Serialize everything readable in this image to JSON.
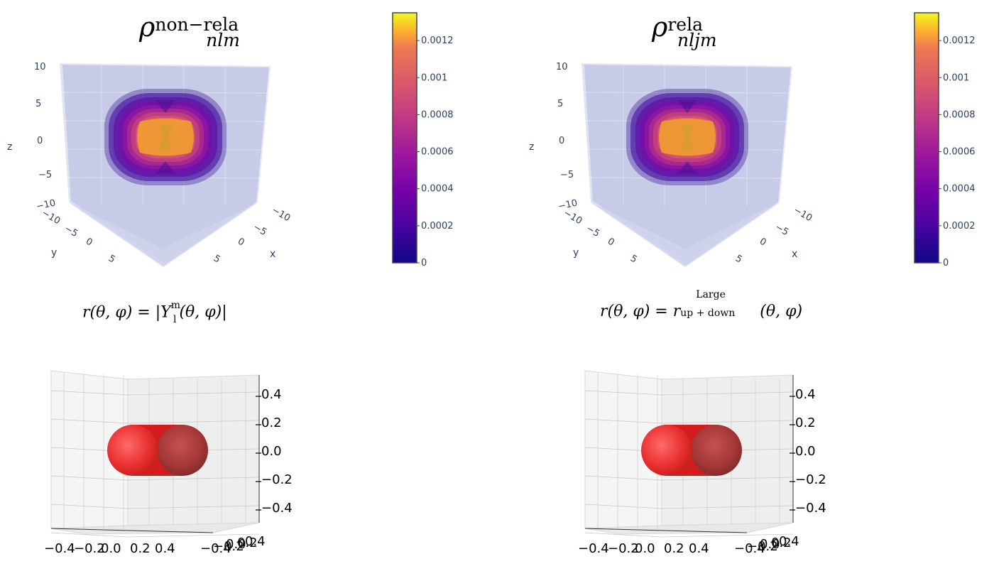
{
  "chart_data": [
    {
      "type": "surface3d",
      "title": "ρ nlm non−rela",
      "title_parts": {
        "base": "ρ",
        "sup": "non−rela",
        "sub": "nlm"
      },
      "axes": {
        "x": {
          "label": "x",
          "range": [
            -10,
            10
          ],
          "ticks": [
            "−10",
            "−5",
            "0",
            "5"
          ]
        },
        "y": {
          "label": "y",
          "range": [
            -10,
            10
          ],
          "ticks": [
            "−10",
            "−5",
            "0",
            "5"
          ]
        },
        "z": {
          "label": "z",
          "range": [
            -10,
            10
          ],
          "ticks": [
            "10",
            "5",
            "0",
            "−5",
            "−10"
          ]
        }
      },
      "colorbar": {
        "min": 0,
        "max": 0.00135,
        "ticks": [
          "0.0012",
          "0.001",
          "0.0008",
          "0.0006",
          "0.0004",
          "0.0002",
          "0"
        ],
        "colorscale": "plasma"
      },
      "isosurface_levels": [
        0.0001,
        0.0002,
        0.0004,
        0.0006,
        0.0008,
        0.001,
        0.0012
      ]
    },
    {
      "type": "surface3d",
      "title": "ρ nljm rela",
      "title_parts": {
        "base": "ρ",
        "sup": "rela",
        "sub": "nljm"
      },
      "axes": {
        "x": {
          "label": "x",
          "range": [
            -10,
            10
          ],
          "ticks": [
            "−10",
            "−5",
            "0",
            "5"
          ]
        },
        "y": {
          "label": "y",
          "range": [
            -10,
            10
          ],
          "ticks": [
            "−10",
            "−5",
            "0",
            "5"
          ]
        },
        "z": {
          "label": "z",
          "range": [
            -10,
            10
          ],
          "ticks": [
            "10",
            "5",
            "0",
            "−5",
            "−10"
          ]
        }
      },
      "colorbar": {
        "min": 0,
        "max": 0.00135,
        "ticks": [
          "0.0012",
          "0.001",
          "0.0008",
          "0.0006",
          "0.0004",
          "0.0002",
          "0"
        ],
        "colorscale": "plasma"
      },
      "isosurface_levels": [
        0.0001,
        0.0002,
        0.0004,
        0.0006,
        0.0008,
        0.001,
        0.0012
      ]
    },
    {
      "type": "surface3d",
      "title": "r(θ,φ) = |Y_l^m(θ,φ)|",
      "axes": {
        "x": {
          "ticks": [
            "−0.4",
            "−0.2",
            "0.0",
            "0.2",
            "0.4"
          ]
        },
        "y": {
          "ticks": [
            "−0.4",
            "−0.2",
            "0.0",
            "0.2",
            "0.4"
          ]
        },
        "z": {
          "ticks": [
            "0.4",
            "0.2",
            "0.0",
            "−0.2",
            "−0.4"
          ],
          "range": [
            -0.5,
            0.5
          ]
        }
      },
      "lobe_extent": [
        -0.35,
        0.35
      ],
      "lobe_radius": 0.18
    },
    {
      "type": "surface3d",
      "title": "r(θ,φ) = r^Large_up+down(θ,φ)",
      "axes": {
        "x": {
          "ticks": [
            "−0.4",
            "−0.2",
            "0.0",
            "0.2",
            "0.4"
          ]
        },
        "y": {
          "ticks": [
            "−0.4",
            "−0.2",
            "0.0",
            "0.2",
            "0.4"
          ]
        },
        "z": {
          "ticks": [
            "0.4",
            "0.2",
            "0.0",
            "−0.2",
            "−0.4"
          ],
          "range": [
            -0.5,
            0.5
          ]
        }
      },
      "lobe_extent": [
        -0.35,
        0.35
      ],
      "lobe_radius": 0.18
    }
  ],
  "formulas": {
    "left": {
      "lhs": "r(θ, φ) = |Y",
      "sup": "m",
      "sub": "l",
      "rhs": "(θ, φ)|"
    },
    "right": {
      "lhs": "r(θ, φ) = r",
      "sup": "Large",
      "sub": "up + down",
      "rhs": "(θ, φ)"
    }
  },
  "colors": {
    "panel_fill": "#c5c9e6",
    "panel_edge": "#e4e7f3",
    "grid": "#ffffff",
    "lobe": "#e02020",
    "lobe_light": "#ff5555",
    "tick_text": "#2a3f5f"
  }
}
